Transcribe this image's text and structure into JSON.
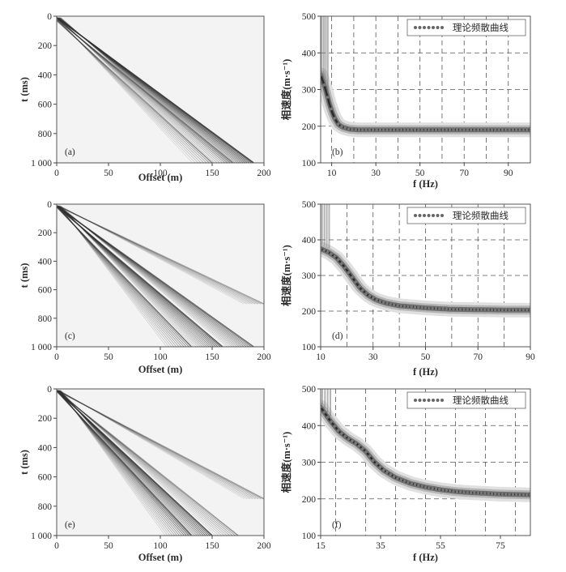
{
  "figure": {
    "panel_labels": [
      "(a)",
      "(b)",
      "(c)",
      "(d)",
      "(e)",
      "(f)"
    ],
    "seismogram_xlabel": "Offset (m)",
    "seismogram_ylabel": "t (ms)",
    "dispersion_xlabel": "f (Hz)",
    "dispersion_ylabel": "相速度(m·s⁻¹)",
    "legend_label": "理论频散曲线"
  },
  "chart_data": [
    {
      "panel": "(a)",
      "type": "heatmap",
      "xlabel": "Offset (m)",
      "ylabel": "t (ms)",
      "xlim": [
        0,
        200
      ],
      "ylim": [
        1000,
        0
      ],
      "xticks": [
        "0",
        "50",
        "100",
        "150",
        "200"
      ],
      "yticks": [
        "0",
        "200",
        "400",
        "600",
        "800",
        "1 000"
      ],
      "events": [
        {
          "x0": 0,
          "t0": 10,
          "x1": 190,
          "t1": 1000,
          "strength": 1.0
        },
        {
          "x0": 0,
          "t0": 20,
          "x1": 170,
          "t1": 1000,
          "strength": 0.45
        },
        {
          "x0": 0,
          "t0": 30,
          "x1": 150,
          "t1": 1000,
          "strength": 0.3
        }
      ]
    },
    {
      "panel": "(b)",
      "type": "line",
      "xlabel": "f (Hz)",
      "ylabel": "相速度(m·s⁻¹)",
      "xlim": [
        5,
        100
      ],
      "ylim": [
        100,
        500
      ],
      "xticks": [
        10,
        30,
        50,
        70,
        90
      ],
      "yticks": [
        100,
        200,
        300,
        400,
        500
      ],
      "grid": true,
      "legend": "top-right",
      "series": [
        {
          "name": "理论频散曲线",
          "x": [
            5,
            7,
            9,
            11,
            13,
            15,
            18,
            22,
            30,
            40,
            50,
            60,
            70,
            80,
            90,
            100
          ],
          "y": [
            340,
            305,
            260,
            225,
            205,
            197,
            192,
            190,
            190,
            190,
            190,
            190,
            190,
            190,
            190,
            190
          ]
        }
      ]
    },
    {
      "panel": "(c)",
      "type": "heatmap",
      "xlabel": "Offset (m)",
      "ylabel": "t (ms)",
      "xlim": [
        0,
        200
      ],
      "ylim": [
        1000,
        0
      ],
      "xticks": [
        "0",
        "50",
        "100",
        "150",
        "200"
      ],
      "yticks": [
        "0",
        "200",
        "400",
        "600",
        "800",
        "1 000"
      ],
      "events": [
        {
          "x0": 0,
          "t0": 15,
          "x1": 190,
          "t1": 1000,
          "strength": 0.7
        },
        {
          "x0": 0,
          "t0": 15,
          "x1": 160,
          "t1": 1000,
          "strength": 0.85
        },
        {
          "x0": 0,
          "t0": 20,
          "x1": 130,
          "t1": 1000,
          "strength": 0.6
        },
        {
          "x0": 0,
          "t0": 10,
          "x1": 200,
          "t1": 700,
          "strength": 0.25
        }
      ]
    },
    {
      "panel": "(d)",
      "type": "line",
      "xlabel": "f (Hz)",
      "ylabel": "相速度(m·s⁻¹)",
      "xlim": [
        10,
        90
      ],
      "ylim": [
        100,
        500
      ],
      "xticks": [
        10,
        30,
        50,
        70,
        90
      ],
      "yticks": [
        100,
        200,
        300,
        400,
        500
      ],
      "grid": true,
      "legend": "top-right",
      "series": [
        {
          "name": "理论频散曲线",
          "x": [
            10,
            13,
            16,
            19,
            22,
            25,
            28,
            31,
            35,
            40,
            45,
            50,
            55,
            60,
            70,
            80,
            90
          ],
          "y": [
            375,
            365,
            350,
            325,
            295,
            265,
            245,
            232,
            222,
            215,
            212,
            209,
            207,
            205,
            204,
            203,
            203
          ]
        }
      ]
    },
    {
      "panel": "(e)",
      "type": "heatmap",
      "xlabel": "Offset (m)",
      "ylabel": "t (ms)",
      "xlim": [
        0,
        200
      ],
      "ylim": [
        1000,
        0
      ],
      "xticks": [
        "0",
        "50",
        "100",
        "150",
        "200"
      ],
      "yticks": [
        "0",
        "200",
        "400",
        "600",
        "800",
        "1 000"
      ],
      "events": [
        {
          "x0": 0,
          "t0": 10,
          "x1": 150,
          "t1": 1000,
          "strength": 0.9
        },
        {
          "x0": 0,
          "t0": 15,
          "x1": 130,
          "t1": 1000,
          "strength": 0.7
        },
        {
          "x0": 0,
          "t0": 15,
          "x1": 175,
          "t1": 1000,
          "strength": 0.35
        },
        {
          "x0": 0,
          "t0": 10,
          "x1": 200,
          "t1": 750,
          "strength": 0.3
        }
      ]
    },
    {
      "panel": "(f)",
      "type": "line",
      "xlabel": "f (Hz)",
      "ylabel": "相速度(m·s⁻¹)",
      "xlim": [
        15,
        85
      ],
      "ylim": [
        100,
        500
      ],
      "xticks": [
        15,
        35,
        55,
        75
      ],
      "yticks": [
        100,
        200,
        300,
        400,
        500
      ],
      "grid": true,
      "legend": "top-right",
      "series": [
        {
          "name": "理论频散曲线",
          "x": [
            15,
            18,
            21,
            24,
            27,
            30,
            33,
            36,
            40,
            45,
            50,
            55,
            60,
            65,
            70,
            75,
            80,
            85
          ],
          "y": [
            450,
            415,
            385,
            365,
            350,
            330,
            300,
            278,
            258,
            242,
            232,
            225,
            220,
            217,
            215,
            213,
            212,
            211
          ]
        }
      ]
    }
  ]
}
